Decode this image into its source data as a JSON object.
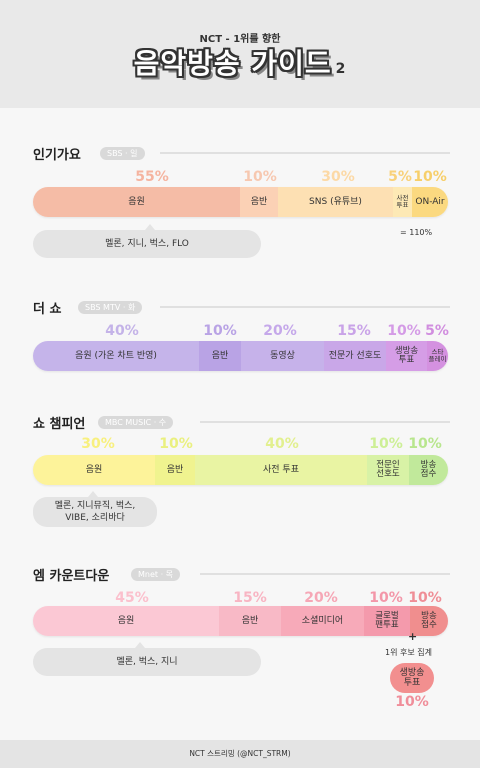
{
  "header": {
    "subtitle": "NCT - 1위를 향한",
    "title": "음악방송 가이드",
    "title_num": "2"
  },
  "sections": {
    "s1": {
      "title": "인기가요",
      "tag": "SBS · 일",
      "pcts": [
        "55%",
        "10%",
        "30%",
        "5%",
        "10%"
      ],
      "segs": [
        "음원",
        "음반",
        "SNS (유튜브)",
        "사전\n투표",
        "ON-Air"
      ],
      "note": "멜론, 지니, 벅스, FLO",
      "total": "= 110%"
    },
    "s2": {
      "title": "더 쇼",
      "tag": "SBS MTV · 화",
      "pcts": [
        "40%",
        "10%",
        "20%",
        "15%",
        "10%",
        "5%"
      ],
      "segs": [
        "음원 (가온 차트 반영)",
        "음반",
        "동영상",
        "전문가 선호도",
        "생방송\n투표",
        "스타\n플레이"
      ]
    },
    "s3": {
      "title": "쇼 챔피언",
      "tag": "MBC MUSIC · 수",
      "pcts": [
        "30%",
        "10%",
        "40%",
        "10%",
        "10%"
      ],
      "segs": [
        "음원",
        "음반",
        "사전 투표",
        "전문인\n선호도",
        "방송\n점수"
      ],
      "note": "멜론, 지니뮤직, 벅스,\nVIBE, 소리바다"
    },
    "s4": {
      "title": "엠 카운트다운",
      "tag": "Mnet · 목",
      "pcts": [
        "45%",
        "15%",
        "20%",
        "10%",
        "10%"
      ],
      "segs": [
        "음원",
        "음반",
        "소셜미디어",
        "글로벌\n팬투표",
        "방송\n점수"
      ],
      "note": "멜론, 벅스, 지니",
      "plus": "+",
      "extra_label": "1위 후보 집계",
      "bubble": "생방송\n투표",
      "bubble_pct": "10%"
    }
  },
  "footer": "NCT 스트리밍 (@NCT_STRM)",
  "colors": {
    "s1": [
      "#f5bca6",
      "#fbd1b5",
      "#fde0b3",
      "#fde9b5",
      "#fbd980"
    ],
    "s2": [
      "#c5b4ea",
      "#b9a3e5",
      "#c6b2ea",
      "#c9a7e8",
      "#d59de6",
      "#d491e0"
    ],
    "s3": [
      "#fdf39a",
      "#f0f38f",
      "#e9f4a3",
      "#d8f2a6",
      "#c1e99b"
    ],
    "s4": [
      "#fbc8d4",
      "#f8b9c6",
      "#f7aab9",
      "#f49aac",
      "#f08e8e"
    ]
  }
}
